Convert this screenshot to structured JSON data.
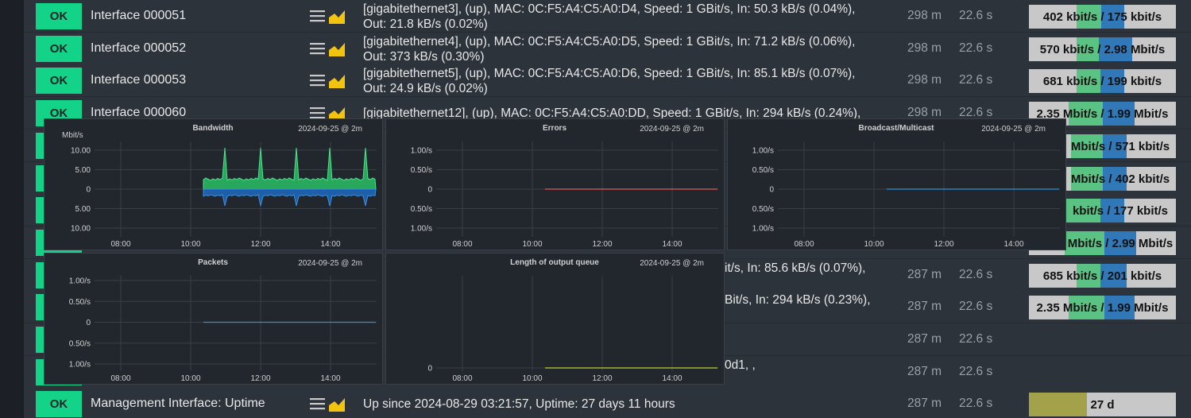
{
  "rows": [
    {
      "state": "OK",
      "name": "Interface 000051",
      "output": [
        "[gigabitethernet3], (up), MAC: 0C:F5:A4:C5:A0:D4, Speed: 1 GBit/s, In: 50.3 kB/s (0.04%),",
        "Out: 21.8 kB/s (0.02%)"
      ],
      "age": "298 m",
      "check": "22.6 s",
      "perf": "402 kbit/s / 175 kbit/s"
    },
    {
      "state": "OK",
      "name": "Interface 000052",
      "output": [
        "[gigabitethernet4], (up), MAC: 0C:F5:A4:C5:A0:D5, Speed: 1 GBit/s, In: 71.2 kB/s (0.06%),",
        "Out: 373 kB/s (0.30%)"
      ],
      "age": "298 m",
      "check": "22.6 s",
      "perf": "570 kbit/s / 2.98 Mbit/s"
    },
    {
      "state": "OK",
      "name": "Interface 000053",
      "output": [
        "[gigabitethernet5], (up), MAC: 0C:F5:A4:C5:A0:D6, Speed: 1 GBit/s, In: 85.1 kB/s (0.07%),",
        "Out: 24.9 kB/s (0.02%)"
      ],
      "age": "298 m",
      "check": "22.6 s",
      "perf": "681 kbit/s / 199 kbit/s"
    },
    {
      "state": "OK",
      "name": "Interface 000060",
      "output": [
        "[gigabitethernet12], (up), MAC: 0C:F5:A4:C5:A0:DD, Speed: 1 GBit/s, In: 294 kB/s (0.24%),"
      ],
      "age": "298 m",
      "check": "22.6 s",
      "perf": "2.35 Mbit/s / 1.99 Mbit/s"
    },
    {
      "perf_fragment": "Mbit/s / 571 kbit/s"
    },
    {
      "perf_fragment": "Mbit/s / 402 kbit/s"
    },
    {
      "perf_fragment": "kbit/s / 177 kbit/s"
    },
    {
      "perf_fragment": "Mbit/s / 2.99 Mbit/s"
    },
    {
      "output_fragment": "it/s, In: 85.6 kB/s (0.07%),",
      "age": "287 m",
      "check": "22.6 s",
      "perf": "685 kbit/s / 201 kbit/s"
    },
    {
      "output_fragment": "Bit/s, In: 294 kB/s (0.23%),",
      "age": "287 m",
      "check": "22.6 s",
      "perf": "2.35 Mbit/s / 1.99 Mbit/s"
    },
    {
      "age": "287 m",
      "check": "22.6 s"
    },
    {
      "output_fragment": "0d1, ,",
      "age": "287 m",
      "check": "22.6 s"
    },
    {
      "state": "OK",
      "name": "Management Interface: Uptime",
      "output": [
        "Up since 2024-08-29 03:21:57, Uptime: 27 days 11 hours"
      ],
      "age": "287 m",
      "check": "22.6 s",
      "perf": "27 d"
    }
  ],
  "graphs": [
    {
      "title": "Bandwidth",
      "date": "2024-09-25 @ 2m",
      "unit": "Mbit/s",
      "yticks": [
        "10.00",
        "5.00",
        "0",
        "5.00",
        "10.00"
      ],
      "xticks": [
        "08:00",
        "10:00",
        "12:00",
        "14:00"
      ]
    },
    {
      "title": "Errors",
      "date": "2024-09-25 @ 2m",
      "yticks": [
        "1.00/s",
        "0.50/s",
        "0",
        "0.50/s",
        "1.00/s"
      ],
      "xticks": [
        "08:00",
        "10:00",
        "12:00",
        "14:00"
      ]
    },
    {
      "title": "Broadcast/Multicast",
      "date": "2024-09-25 @ 2m",
      "yticks": [
        "1.00/s",
        "0.50/s",
        "0",
        "0.50/s",
        "1.00/s"
      ],
      "xticks": [
        "08:00",
        "10:00",
        "12:00",
        "14:00"
      ]
    },
    {
      "title": "Packets",
      "date": "2024-09-25 @ 2m",
      "yticks": [
        "1.00/s",
        "0.50/s",
        "0",
        "0.50/s",
        "1.00/s"
      ],
      "xticks": [
        "08:00",
        "10:00",
        "12:00",
        "14:00"
      ]
    },
    {
      "title": "Length of output queue",
      "date": "2024-09-25 @ 2m",
      "yticks": [
        "0"
      ],
      "xticks": [
        "08:00",
        "10:00",
        "12:00",
        "14:00"
      ]
    }
  ]
}
